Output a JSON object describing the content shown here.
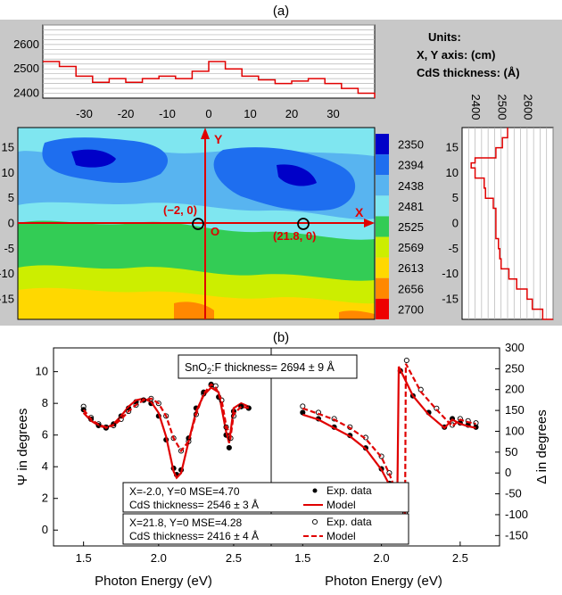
{
  "panel_a": {
    "label": "(a)",
    "units_title": "Units:",
    "units_xy": "X, Y axis: (cm)",
    "units_cds": "CdS thickness: (Å)",
    "point_labels": [
      "(−2, 0)",
      "(21.8, 0)"
    ],
    "axis_letters": {
      "x": "X",
      "y": "Y",
      "origin": "O"
    },
    "colorbar": {
      "levels": [
        "2350",
        "2394",
        "2438",
        "2481",
        "2525",
        "2569",
        "2613",
        "2656",
        "2700"
      ],
      "colors": [
        "#0000c8",
        "#1e6eef",
        "#58b4f0",
        "#7fe6f0",
        "#33cc55",
        "#ccee00",
        "#ffd800",
        "#ff8800",
        "#ee0000"
      ]
    }
  },
  "panel_b": {
    "label": "(b)",
    "sno2_box": "SnO2:F thickness= 2694 ± 9 Å",
    "sno2_prefix": "SnO",
    "sno2_sub": "2",
    "sno2_suffix": ":F thickness= 2694 ± 9 Å",
    "ylabel_left": "Ψ in degrees",
    "ylabel_right": "Δ in degrees",
    "xlabel": "Photon Energy (eV)",
    "box1_line1": "X=-2.0, Y=0    MSE=4.70",
    "box1_line2": "CdS thickness= 2546 ± 3 Å",
    "box2_line1": "X=21.8, Y=0    MSE=4.28",
    "box2_line2": "CdS thickness= 2416 ± 4 Å",
    "legend1": [
      "Exp. data",
      "Model"
    ],
    "legend2": [
      "Exp. data",
      "Model"
    ]
  },
  "chart_data": [
    {
      "type": "line",
      "x": [
        -40,
        -36,
        -32,
        -28,
        -24,
        -20,
        -16,
        -12,
        -8,
        -4,
        0,
        4,
        8,
        12,
        16,
        20,
        24,
        28,
        32,
        36,
        40
      ],
      "values": [
        2530,
        2510,
        2470,
        2445,
        2460,
        2445,
        2460,
        2470,
        2460,
        2490,
        2530,
        2500,
        2470,
        2455,
        2440,
        2450,
        2460,
        2440,
        2420,
        2400,
        2380
      ],
      "ylim": [
        2380,
        2680
      ],
      "yticks": [
        2400,
        2500,
        2600
      ],
      "xticks": [
        -30,
        -20,
        -10,
        0,
        10,
        20,
        30
      ]
    },
    {
      "type": "line",
      "y": [
        19,
        17,
        15,
        13,
        12,
        11,
        9,
        7,
        5,
        3,
        1,
        -1,
        -3,
        -5,
        -7,
        -9,
        -11,
        -13,
        -15,
        -17,
        -19
      ],
      "values": [
        2525,
        2505,
        2480,
        2400,
        2385,
        2400,
        2435,
        2440,
        2470,
        2480,
        2480,
        2480,
        2490,
        2495,
        2500,
        2530,
        2560,
        2600,
        2620,
        2660,
        2700
      ],
      "xlim": [
        2350,
        2700
      ],
      "xticks": [
        2400,
        2500,
        2600
      ],
      "yticks": [
        -15,
        -10,
        -5,
        0,
        5,
        10,
        15
      ]
    },
    {
      "type": "heatmap",
      "xlim": [
        -40,
        40
      ],
      "ylim": [
        -19,
        19
      ],
      "xticks": [],
      "yticks": [
        -15,
        -10,
        -5,
        0,
        5,
        10,
        15
      ],
      "levels": [
        2350,
        2394,
        2438,
        2481,
        2525,
        2569,
        2613,
        2656,
        2700
      ],
      "points": [
        [
          -2,
          0
        ],
        [
          21.8,
          0
        ]
      ]
    },
    {
      "type": "line",
      "xlabel": "Photon Energy (eV)",
      "ylabel": "Ψ in degrees",
      "xlim": [
        1.3,
        2.75
      ],
      "ylim": [
        -1,
        11.5
      ],
      "xticks": [
        1.5,
        2.0,
        2.5
      ],
      "yticks": [
        0,
        2,
        4,
        6,
        8,
        10
      ],
      "series": [
        {
          "name": "Exp. data",
          "x": [
            1.5,
            1.55,
            1.6,
            1.65,
            1.7,
            1.75,
            1.8,
            1.85,
            1.9,
            1.95,
            2.0,
            2.05,
            2.1,
            2.12,
            2.15,
            2.2,
            2.25,
            2.3,
            2.35,
            2.4,
            2.45,
            2.47,
            2.5,
            2.55,
            2.6
          ],
          "values": [
            7.6,
            7.0,
            6.6,
            6.45,
            6.7,
            7.2,
            7.7,
            8.1,
            8.2,
            8.0,
            7.2,
            5.7,
            3.9,
            3.5,
            3.8,
            5.8,
            7.7,
            8.7,
            9.15,
            8.4,
            6.0,
            5.2,
            7.5,
            7.8,
            7.7
          ]
        },
        {
          "name": "Model",
          "x": [
            1.5,
            1.55,
            1.6,
            1.65,
            1.7,
            1.75,
            1.8,
            1.85,
            1.9,
            1.95,
            2.0,
            2.05,
            2.1,
            2.12,
            2.15,
            2.2,
            2.25,
            2.3,
            2.35,
            2.4,
            2.45,
            2.47,
            2.5,
            2.55,
            2.6
          ],
          "values": [
            7.4,
            6.9,
            6.6,
            6.45,
            6.7,
            7.2,
            7.8,
            8.2,
            8.3,
            8.1,
            7.4,
            5.9,
            3.7,
            3.3,
            3.6,
            5.6,
            7.5,
            8.5,
            9.0,
            8.7,
            6.2,
            5.5,
            7.7,
            8.0,
            7.8
          ]
        },
        {
          "name": "Exp. data",
          "x": [
            1.5,
            1.55,
            1.6,
            1.65,
            1.7,
            1.75,
            1.8,
            1.85,
            1.9,
            1.95,
            2.0,
            2.05,
            2.1,
            2.15,
            2.2,
            2.25,
            2.3,
            2.35,
            2.38,
            2.42,
            2.45,
            2.48,
            2.5,
            2.55,
            2.6
          ],
          "values": [
            7.8,
            7.1,
            6.7,
            6.5,
            6.6,
            7.0,
            7.5,
            7.9,
            8.2,
            8.3,
            8.0,
            7.2,
            5.8,
            5.0,
            5.6,
            7.3,
            8.6,
            9.2,
            9.1,
            8.2,
            6.5,
            5.8,
            7.2,
            7.8,
            7.7
          ]
        },
        {
          "name": "Model",
          "x": [
            1.5,
            1.55,
            1.6,
            1.65,
            1.7,
            1.75,
            1.8,
            1.85,
            1.9,
            1.95,
            2.0,
            2.05,
            2.1,
            2.15,
            2.2,
            2.25,
            2.3,
            2.35,
            2.38,
            2.42,
            2.45,
            2.48,
            2.5,
            2.55,
            2.6
          ],
          "values": [
            7.6,
            7.0,
            6.65,
            6.5,
            6.6,
            7.0,
            7.5,
            7.9,
            8.2,
            8.3,
            8.0,
            7.2,
            5.8,
            5.0,
            5.6,
            7.3,
            8.6,
            9.2,
            9.0,
            8.2,
            6.6,
            5.9,
            7.3,
            7.8,
            7.7
          ]
        }
      ]
    },
    {
      "type": "line",
      "xlabel": "Photon Energy (eV)",
      "ylabel": "Δ in degrees",
      "xlim": [
        1.3,
        2.75
      ],
      "ylim": [
        -175,
        300
      ],
      "xticks": [
        1.5,
        2.0,
        2.5
      ],
      "yticks": [
        -150,
        -100,
        -50,
        0,
        50,
        100,
        150,
        200,
        250,
        300
      ],
      "series": [
        {
          "name": "Exp. data",
          "x": [
            1.5,
            1.6,
            1.7,
            1.8,
            1.9,
            2.0,
            2.05,
            2.08,
            2.1,
            2.12,
            2.2,
            2.3,
            2.4,
            2.45,
            2.5,
            2.55,
            2.6
          ],
          "values": [
            145,
            130,
            110,
            90,
            60,
            10,
            -25,
            -60,
            -85,
            245,
            185,
            145,
            110,
            130,
            120,
            115,
            110
          ]
        },
        {
          "name": "Model",
          "x": [
            1.5,
            1.6,
            1.7,
            1.8,
            1.9,
            2.0,
            2.05,
            2.08,
            2.1,
            2.11,
            2.2,
            2.3,
            2.4,
            2.45,
            2.5,
            2.55,
            2.6
          ],
          "values": [
            140,
            128,
            108,
            88,
            58,
            8,
            -28,
            -62,
            -88,
            255,
            185,
            140,
            108,
            128,
            118,
            112,
            108
          ]
        },
        {
          "name": "Exp. data",
          "x": [
            1.5,
            1.6,
            1.7,
            1.8,
            1.9,
            2.0,
            2.05,
            2.1,
            2.15,
            2.16,
            2.25,
            2.35,
            2.45,
            2.5,
            2.55,
            2.6
          ],
          "values": [
            160,
            145,
            130,
            110,
            85,
            40,
            0,
            -50,
            -95,
            270,
            200,
            155,
            115,
            130,
            125,
            120
          ]
        },
        {
          "name": "Model",
          "x": [
            1.5,
            1.6,
            1.7,
            1.8,
            1.9,
            2.0,
            2.05,
            2.1,
            2.15,
            2.155,
            2.25,
            2.35,
            2.45,
            2.5,
            2.55,
            2.6
          ],
          "values": [
            155,
            142,
            128,
            108,
            82,
            38,
            -2,
            -52,
            -98,
            262,
            195,
            152,
            112,
            128,
            122,
            118
          ]
        }
      ]
    }
  ]
}
